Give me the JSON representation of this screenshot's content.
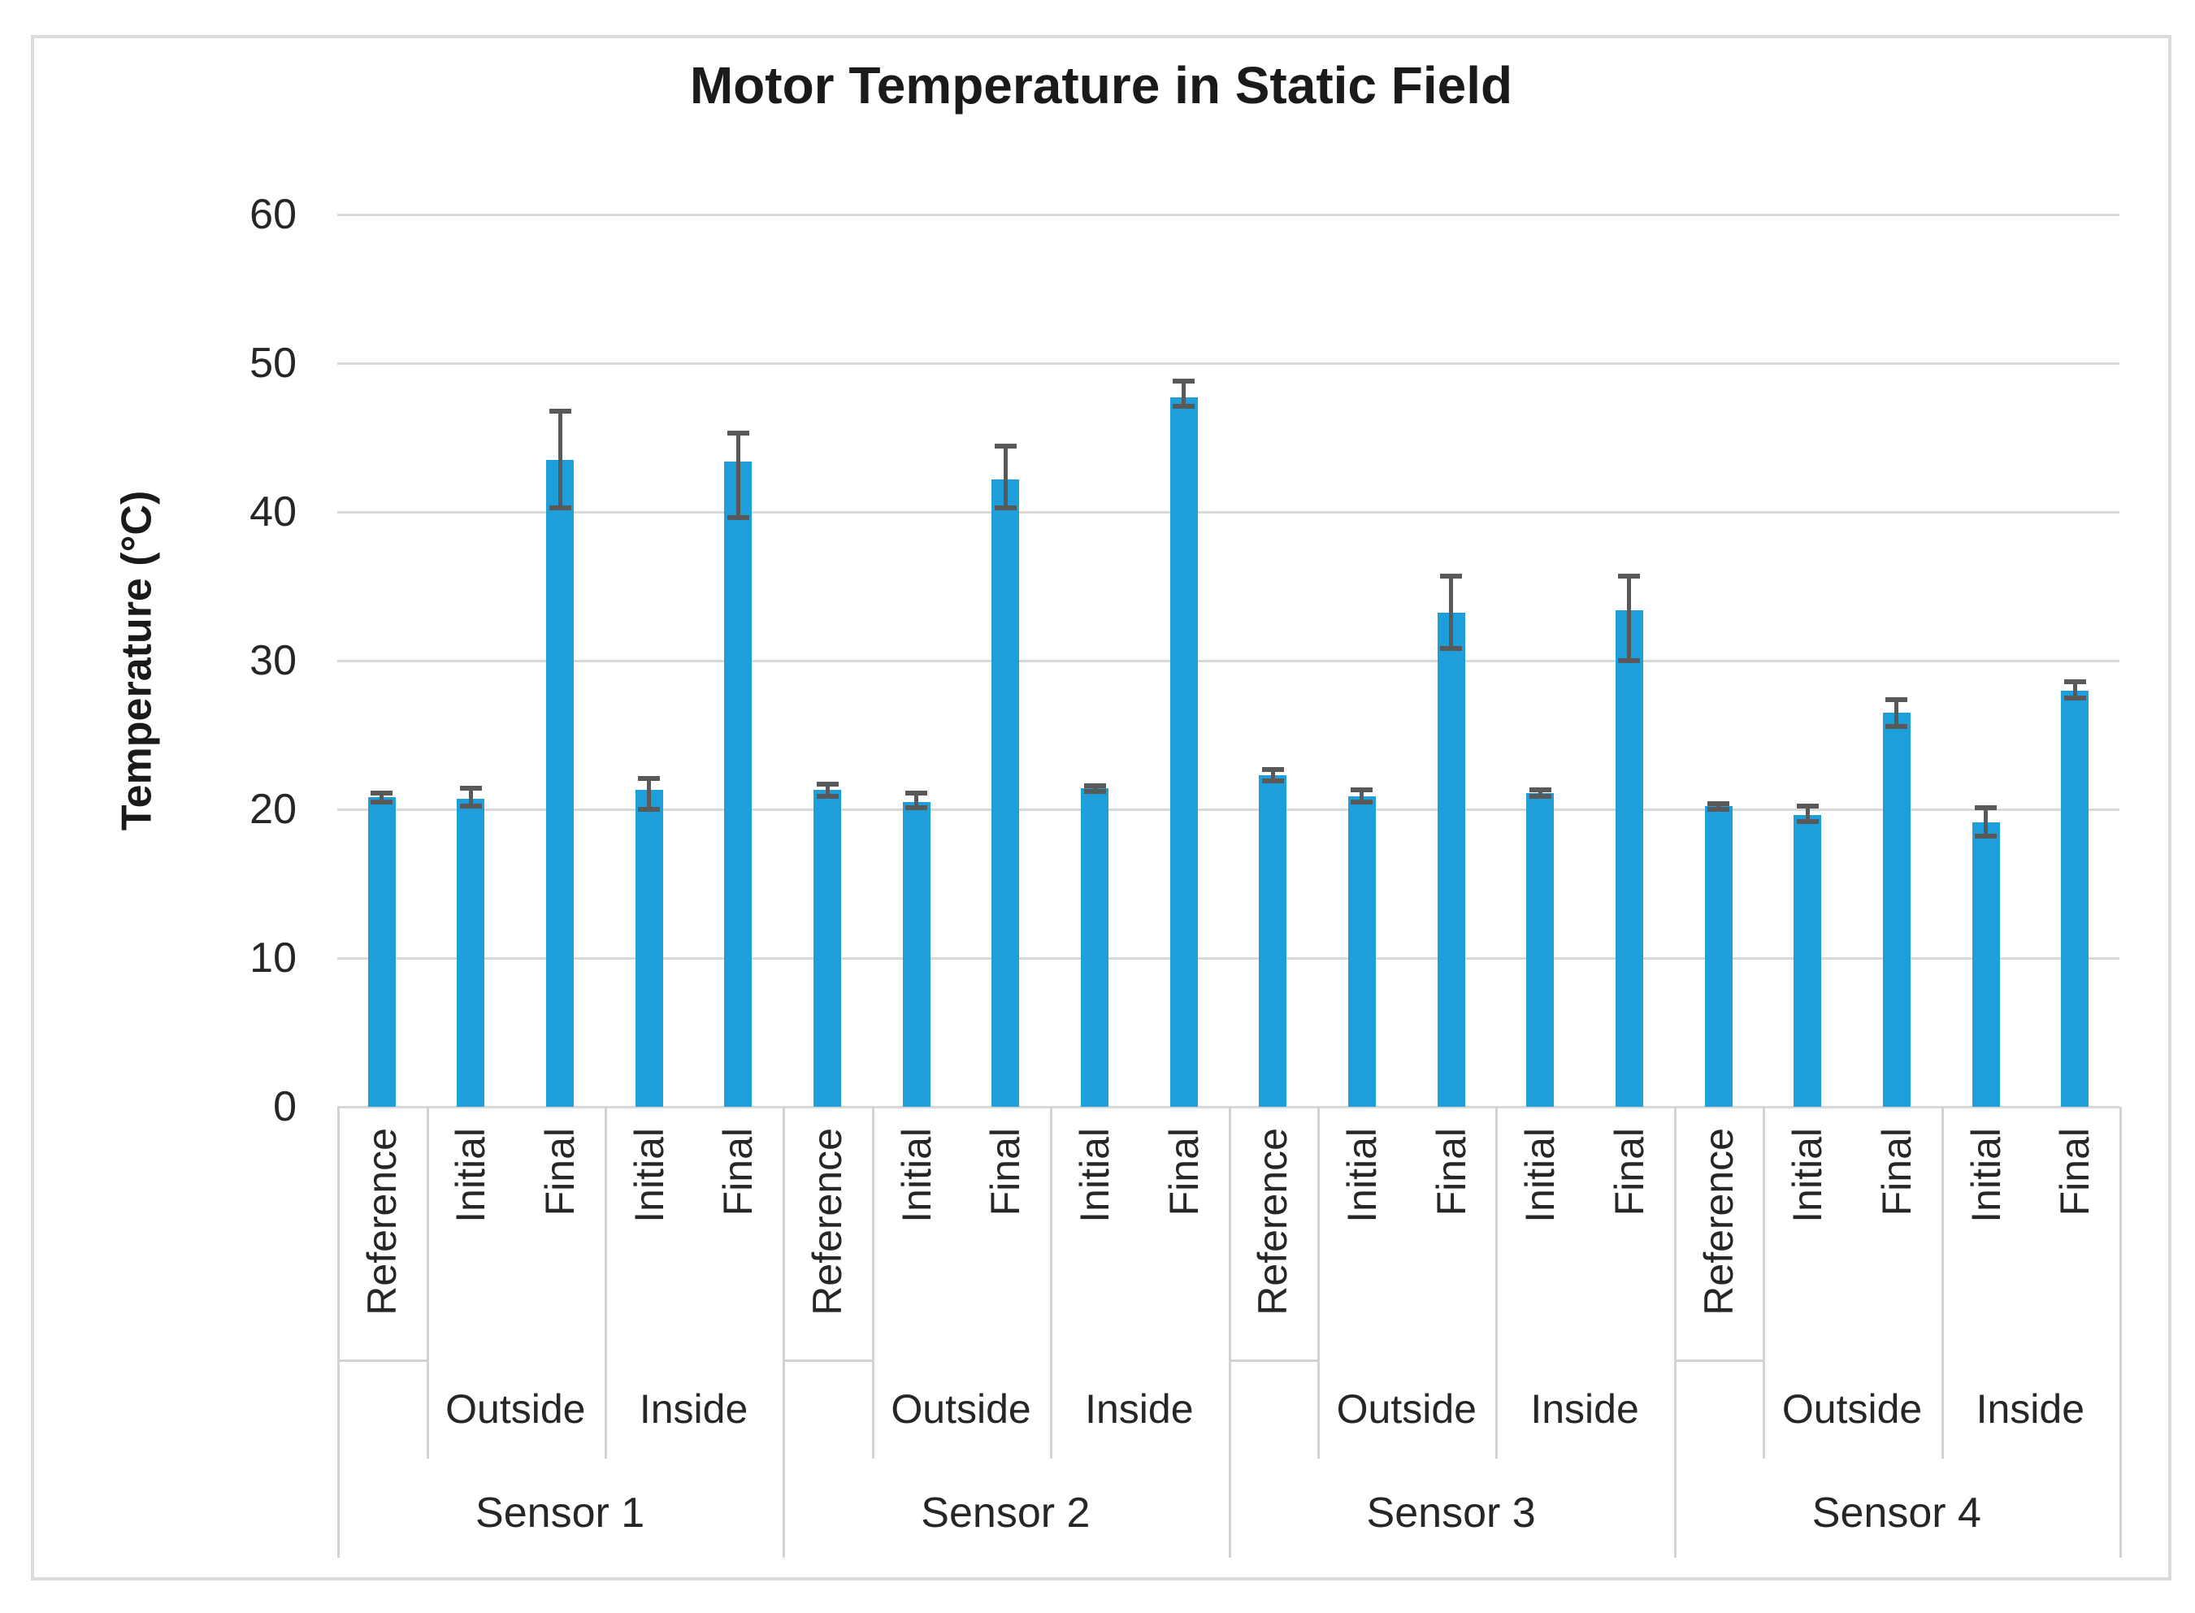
{
  "title": "Motor Temperature in Static Field",
  "y_axis": {
    "title": "Temperature (°C)",
    "ticks": [
      60,
      50,
      40,
      30,
      20,
      10,
      0
    ],
    "min": 0,
    "max": 60
  },
  "colors": {
    "bar": "#1F9FD9",
    "error_bar": "#595959",
    "gridline": "#D9D9D9",
    "table_line": "#D2D2D2",
    "text": "#262626",
    "frame_border": "#DBDBDB"
  },
  "chart_data": {
    "type": "bar",
    "title": "Motor Temperature in Static Field",
    "xlabel": "",
    "ylabel": "Temperature (°C)",
    "ylim": [
      0,
      60
    ],
    "grid": true,
    "legend": "none",
    "error_bars": true,
    "groups": [
      {
        "label": "Sensor 1",
        "bars": [
          {
            "category": "Reference",
            "subgroup": "",
            "value": 20.8,
            "err_up": 0.3,
            "err_down": 0.3
          },
          {
            "category": "Initial",
            "subgroup": "Outside",
            "value": 20.7,
            "err_up": 0.7,
            "err_down": 0.5
          },
          {
            "category": "Final",
            "subgroup": "Outside",
            "value": 43.5,
            "err_up": 3.3,
            "err_down": 3.2
          },
          {
            "category": "Initial",
            "subgroup": "Inside",
            "value": 21.3,
            "err_up": 0.8,
            "err_down": 1.3
          },
          {
            "category": "Final",
            "subgroup": "Inside",
            "value": 43.4,
            "err_up": 1.9,
            "err_down": 3.8
          }
        ]
      },
      {
        "label": "Sensor 2",
        "bars": [
          {
            "category": "Reference",
            "subgroup": "",
            "value": 21.3,
            "err_up": 0.4,
            "err_down": 0.4
          },
          {
            "category": "Initial",
            "subgroup": "Outside",
            "value": 20.5,
            "err_up": 0.6,
            "err_down": 0.4
          },
          {
            "category": "Final",
            "subgroup": "Outside",
            "value": 42.2,
            "err_up": 2.2,
            "err_down": 1.9
          },
          {
            "category": "Initial",
            "subgroup": "Inside",
            "value": 21.4,
            "err_up": 0.2,
            "err_down": 0.2
          },
          {
            "category": "Final",
            "subgroup": "Inside",
            "value": 47.7,
            "err_up": 1.1,
            "err_down": 0.6
          }
        ]
      },
      {
        "label": "Sensor 3",
        "bars": [
          {
            "category": "Reference",
            "subgroup": "",
            "value": 22.3,
            "err_up": 0.4,
            "err_down": 0.4
          },
          {
            "category": "Initial",
            "subgroup": "Outside",
            "value": 20.9,
            "err_up": 0.4,
            "err_down": 0.4
          },
          {
            "category": "Final",
            "subgroup": "Outside",
            "value": 33.2,
            "err_up": 2.5,
            "err_down": 2.4
          },
          {
            "category": "Initial",
            "subgroup": "Inside",
            "value": 21.1,
            "err_up": 0.2,
            "err_down": 0.2
          },
          {
            "category": "Final",
            "subgroup": "Inside",
            "value": 33.4,
            "err_up": 2.3,
            "err_down": 3.4
          }
        ]
      },
      {
        "label": "Sensor 4",
        "bars": [
          {
            "category": "Reference",
            "subgroup": "",
            "value": 20.2,
            "err_up": 0.2,
            "err_down": 0.2
          },
          {
            "category": "Initial",
            "subgroup": "Outside",
            "value": 19.6,
            "err_up": 0.6,
            "err_down": 0.4
          },
          {
            "category": "Final",
            "subgroup": "Outside",
            "value": 26.5,
            "err_up": 0.9,
            "err_down": 0.9
          },
          {
            "category": "Initial",
            "subgroup": "Inside",
            "value": 19.1,
            "err_up": 1.0,
            "err_down": 0.9
          },
          {
            "category": "Final",
            "subgroup": "Inside",
            "value": 28.0,
            "err_up": 0.6,
            "err_down": 0.5
          }
        ]
      }
    ]
  }
}
